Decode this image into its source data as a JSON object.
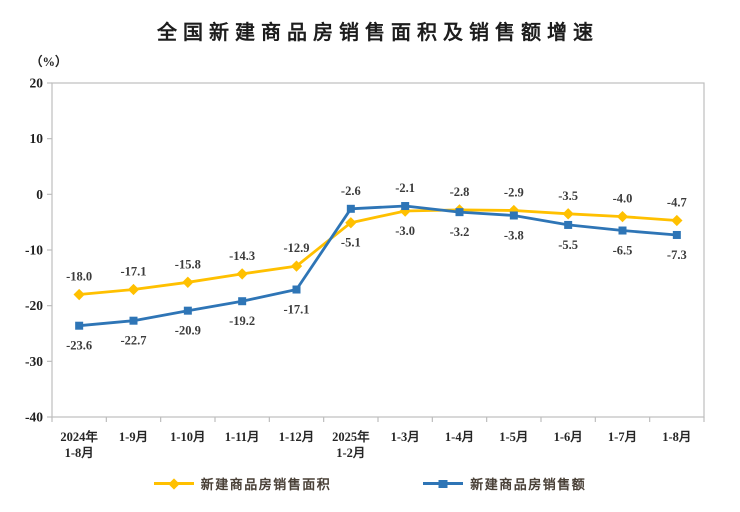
{
  "title": "全国新建商品房销售面积及销售额增速",
  "unit_label": "（%）",
  "legend": [
    {
      "label": "新建商品房销售面积",
      "color": "#FFC000",
      "marker": "diamond"
    },
    {
      "label": "新建商品房销售额",
      "color": "#2E75B6",
      "marker": "square"
    }
  ],
  "colors": {
    "sales_area_line": "#FFC000",
    "sales_amount_line": "#2E75B6",
    "axis_border": "#bdbdbd",
    "tick_text": "#1f1f1f",
    "data_label_text": "#3b3b3b"
  },
  "chart_data": {
    "type": "line",
    "title": "全国新建商品房销售面积及销售额增速",
    "ylabel": "（%）",
    "categories": [
      "2024年\n1-8月",
      "1-9月",
      "1-10月",
      "1-11月",
      "1-12月",
      "2025年\n1-2月",
      "1-3月",
      "1-4月",
      "1-5月",
      "1-6月",
      "1-7月",
      "1-8月"
    ],
    "series": [
      {
        "name": "新建商品房销售面积",
        "color": "#FFC000",
        "marker": "diamond",
        "values": [
          -18.0,
          -17.1,
          -15.8,
          -14.3,
          -12.9,
          -5.1,
          -3.0,
          -2.8,
          -2.9,
          -3.5,
          -4.0,
          -4.7
        ]
      },
      {
        "name": "新建商品房销售额",
        "color": "#2E75B6",
        "marker": "square",
        "values": [
          -23.6,
          -22.7,
          -20.9,
          -19.2,
          -17.1,
          -2.6,
          -2.1,
          -3.2,
          -3.8,
          -5.5,
          -6.5,
          -7.3
        ]
      }
    ],
    "ylim": [
      -40,
      20
    ],
    "yticks": [
      20,
      10,
      0,
      -10,
      -20,
      -30,
      -40
    ],
    "grid": false,
    "legend_position": "bottom",
    "data_labels": true
  }
}
